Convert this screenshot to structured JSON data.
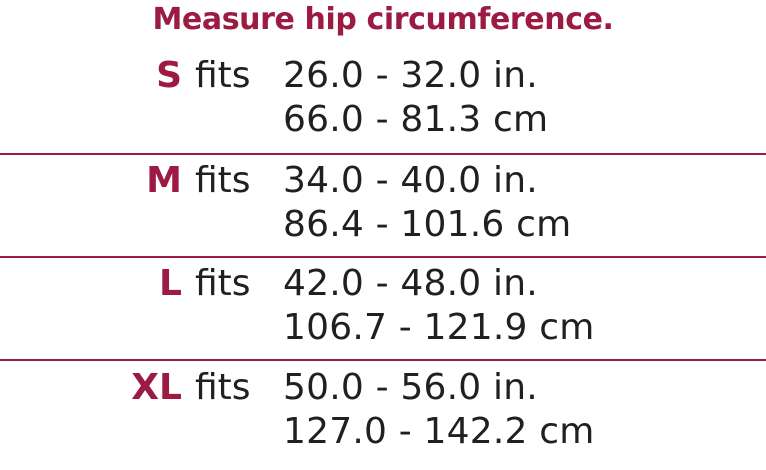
{
  "title": "Measure hip circumference.",
  "colors": {
    "accent": "#9b1b43",
    "text": "#231f20",
    "background": "#ffffff"
  },
  "sizes": [
    {
      "label": "S",
      "fits": "fits",
      "inches": "26.0 - 32.0 in.",
      "cm": "66.0 - 81.3 cm"
    },
    {
      "label": "M",
      "fits": "fits",
      "inches": "34.0 - 40.0 in.",
      "cm": "86.4 - 101.6 cm"
    },
    {
      "label": "L",
      "fits": "fits",
      "inches": "42.0 - 48.0 in.",
      "cm": "106.7 - 121.9 cm"
    },
    {
      "label": "XL",
      "fits": "fits",
      "inches": "50.0 - 56.0 in.",
      "cm": "127.0 - 142.2 cm"
    }
  ]
}
